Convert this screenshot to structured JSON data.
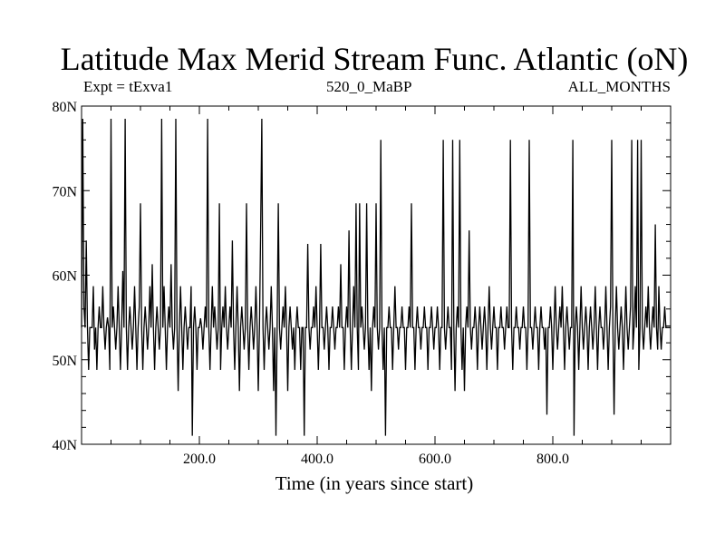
{
  "chart_data": {
    "type": "line",
    "title": "Latitude Max Merid Stream Func. Atlantic (oN)",
    "subtitle_left": "Expt = tExva1",
    "subtitle_center": "520_0_MaBP",
    "subtitle_right": "ALL_MONTHS",
    "xlabel": "Time (in years since start)",
    "ylabel": "",
    "xlim": [
      0,
      1000
    ],
    "ylim": [
      40,
      80
    ],
    "x_ticks": [
      {
        "value": 200,
        "label": "200.0"
      },
      {
        "value": 400,
        "label": "400.0"
      },
      {
        "value": 600,
        "label": "600.0"
      },
      {
        "value": 800,
        "label": "800.0"
      }
    ],
    "y_ticks": [
      {
        "value": 40,
        "label": "40N"
      },
      {
        "value": 50,
        "label": "50N"
      },
      {
        "value": 60,
        "label": "60N"
      },
      {
        "value": 70,
        "label": "70N"
      },
      {
        "value": 80,
        "label": "80N"
      }
    ],
    "grid": false,
    "color": "#000000",
    "baseline": 53.8,
    "x_step": 2,
    "spikes": [
      [
        2,
        78.5
      ],
      [
        4,
        56.3
      ],
      [
        8,
        64.1
      ],
      [
        12,
        48.8
      ],
      [
        19,
        58.7
      ],
      [
        22,
        51.2
      ],
      [
        26,
        48.8
      ],
      [
        30,
        56.3
      ],
      [
        35,
        58.7
      ],
      [
        40,
        51.2
      ],
      [
        44,
        55.0
      ],
      [
        47,
        48.8
      ],
      [
        50,
        78.5
      ],
      [
        53,
        56.3
      ],
      [
        58,
        51.2
      ],
      [
        62,
        58.7
      ],
      [
        66,
        48.8
      ],
      [
        70,
        60.5
      ],
      [
        73,
        78.5
      ],
      [
        77,
        48.8
      ],
      [
        81,
        56.3
      ],
      [
        85,
        51.2
      ],
      [
        89,
        58.7
      ],
      [
        93,
        48.8
      ],
      [
        97,
        56.3
      ],
      [
        100,
        68.5
      ],
      [
        103,
        48.8
      ],
      [
        108,
        56.3
      ],
      [
        112,
        51.2
      ],
      [
        116,
        58.7
      ],
      [
        120,
        61.3
      ],
      [
        124,
        48.8
      ],
      [
        128,
        56.3
      ],
      [
        132,
        51.2
      ],
      [
        136,
        78.5
      ],
      [
        139,
        58.7
      ],
      [
        143,
        48.8
      ],
      [
        147,
        56.3
      ],
      [
        151,
        61.3
      ],
      [
        155,
        51.2
      ],
      [
        160,
        78.5
      ],
      [
        164,
        46.3
      ],
      [
        167,
        58.7
      ],
      [
        171,
        48.8
      ],
      [
        175,
        56.3
      ],
      [
        180,
        51.2
      ],
      [
        185,
        58.7
      ],
      [
        188,
        41.0
      ],
      [
        192,
        56.3
      ],
      [
        196,
        48.8
      ],
      [
        201,
        54.9
      ],
      [
        206,
        51.2
      ],
      [
        210,
        56.3
      ],
      [
        213,
        78.5
      ],
      [
        217,
        48.8
      ],
      [
        221,
        58.7
      ],
      [
        225,
        56.3
      ],
      [
        229,
        51.2
      ],
      [
        233,
        68.5
      ],
      [
        236,
        48.8
      ],
      [
        240,
        56.3
      ],
      [
        244,
        58.7
      ],
      [
        248,
        51.2
      ],
      [
        252,
        56.3
      ],
      [
        256,
        64.1
      ],
      [
        260,
        48.8
      ],
      [
        264,
        58.7
      ],
      [
        268,
        46.3
      ],
      [
        272,
        56.3
      ],
      [
        276,
        51.2
      ],
      [
        280,
        68.5
      ],
      [
        284,
        48.8
      ],
      [
        288,
        56.3
      ],
      [
        292,
        51.2
      ],
      [
        296,
        58.7
      ],
      [
        300,
        46.3
      ],
      [
        304,
        65.3
      ],
      [
        306,
        78.5
      ],
      [
        309,
        48.8
      ],
      [
        313,
        56.3
      ],
      [
        317,
        51.2
      ],
      [
        321,
        58.7
      ],
      [
        325,
        46.3
      ],
      [
        329,
        41.0
      ],
      [
        333,
        68.5
      ],
      [
        337,
        51.2
      ],
      [
        341,
        56.3
      ],
      [
        345,
        58.7
      ],
      [
        349,
        46.3
      ],
      [
        353,
        56.3
      ],
      [
        357,
        51.2
      ],
      [
        361,
        48.8
      ],
      [
        366,
        56.3
      ],
      [
        371,
        48.8
      ],
      [
        378,
        41.0
      ],
      [
        383,
        63.7
      ],
      [
        388,
        51.2
      ],
      [
        393,
        56.3
      ],
      [
        397,
        58.7
      ],
      [
        401,
        48.8
      ],
      [
        406,
        63.7
      ],
      [
        411,
        51.2
      ],
      [
        416,
        56.3
      ],
      [
        420,
        48.8
      ],
      [
        425,
        56.3
      ],
      [
        430,
        51.2
      ],
      [
        435,
        56.3
      ],
      [
        440,
        61.3
      ],
      [
        445,
        48.8
      ],
      [
        450,
        56.3
      ],
      [
        454,
        65.3
      ],
      [
        458,
        48.8
      ],
      [
        462,
        58.7
      ],
      [
        466,
        68.5
      ],
      [
        469,
        48.8
      ],
      [
        472,
        68.5
      ],
      [
        476,
        56.3
      ],
      [
        480,
        51.2
      ],
      [
        484,
        68.5
      ],
      [
        488,
        48.8
      ],
      [
        492,
        46.3
      ],
      [
        496,
        56.3
      ],
      [
        500,
        68.5
      ],
      [
        503,
        51.2
      ],
      [
        507,
        76.0
      ],
      [
        511,
        48.8
      ],
      [
        516,
        41.0
      ],
      [
        521,
        56.3
      ],
      [
        527,
        48.8
      ],
      [
        532,
        58.7
      ],
      [
        538,
        51.2
      ],
      [
        544,
        56.3
      ],
      [
        550,
        48.8
      ],
      [
        556,
        56.3
      ],
      [
        560,
        68.5
      ],
      [
        565,
        48.8
      ],
      [
        570,
        56.3
      ],
      [
        576,
        51.2
      ],
      [
        582,
        56.3
      ],
      [
        587,
        48.8
      ],
      [
        593,
        56.3
      ],
      [
        598,
        51.2
      ],
      [
        603,
        56.3
      ],
      [
        608,
        48.8
      ],
      [
        613,
        76.0
      ],
      [
        617,
        51.2
      ],
      [
        622,
        56.3
      ],
      [
        627,
        48.8
      ],
      [
        630,
        76.0
      ],
      [
        634,
        46.3
      ],
      [
        638,
        56.3
      ],
      [
        641,
        76.0
      ],
      [
        645,
        48.8
      ],
      [
        649,
        46.3
      ],
      [
        654,
        56.3
      ],
      [
        658,
        65.3
      ],
      [
        662,
        51.2
      ],
      [
        667,
        56.3
      ],
      [
        671,
        48.8
      ],
      [
        676,
        56.3
      ],
      [
        680,
        51.2
      ],
      [
        684,
        56.3
      ],
      [
        688,
        48.8
      ],
      [
        692,
        58.7
      ],
      [
        696,
        51.2
      ],
      [
        700,
        56.3
      ],
      [
        706,
        48.8
      ],
      [
        712,
        56.3
      ],
      [
        717,
        51.2
      ],
      [
        722,
        56.3
      ],
      [
        727,
        76.0
      ],
      [
        732,
        48.8
      ],
      [
        738,
        56.3
      ],
      [
        744,
        51.2
      ],
      [
        750,
        56.3
      ],
      [
        755,
        48.8
      ],
      [
        760,
        76.0
      ],
      [
        765,
        51.2
      ],
      [
        770,
        56.3
      ],
      [
        775,
        48.8
      ],
      [
        780,
        56.3
      ],
      [
        785,
        51.2
      ],
      [
        790,
        43.5
      ],
      [
        795,
        56.3
      ],
      [
        800,
        48.8
      ],
      [
        804,
        58.7
      ],
      [
        808,
        51.2
      ],
      [
        812,
        56.3
      ],
      [
        816,
        58.7
      ],
      [
        820,
        48.8
      ],
      [
        824,
        56.3
      ],
      [
        828,
        51.2
      ],
      [
        833,
        76.0
      ],
      [
        836,
        41.0
      ],
      [
        840,
        56.3
      ],
      [
        844,
        48.8
      ],
      [
        848,
        58.7
      ],
      [
        852,
        51.2
      ],
      [
        856,
        56.3
      ],
      [
        860,
        48.8
      ],
      [
        864,
        56.3
      ],
      [
        868,
        51.2
      ],
      [
        872,
        58.7
      ],
      [
        876,
        48.8
      ],
      [
        880,
        56.3
      ],
      [
        885,
        51.2
      ],
      [
        889,
        58.7
      ],
      [
        893,
        48.8
      ],
      [
        897,
        56.3
      ],
      [
        900,
        76.0
      ],
      [
        903,
        43.5
      ],
      [
        907,
        58.7
      ],
      [
        911,
        51.2
      ],
      [
        915,
        56.3
      ],
      [
        919,
        48.8
      ],
      [
        923,
        58.7
      ],
      [
        927,
        51.2
      ],
      [
        931,
        56.3
      ],
      [
        934,
        76.0
      ],
      [
        936,
        51.2
      ],
      [
        939,
        58.7
      ],
      [
        943,
        76.0
      ],
      [
        946,
        48.8
      ],
      [
        950,
        76.0
      ],
      [
        954,
        51.2
      ],
      [
        958,
        56.3
      ],
      [
        962,
        58.7
      ],
      [
        966,
        51.2
      ],
      [
        969,
        56.3
      ],
      [
        974,
        66.0
      ],
      [
        977,
        51.2
      ],
      [
        980,
        58.7
      ],
      [
        984,
        51.2
      ],
      [
        990,
        56.3
      ]
    ]
  }
}
